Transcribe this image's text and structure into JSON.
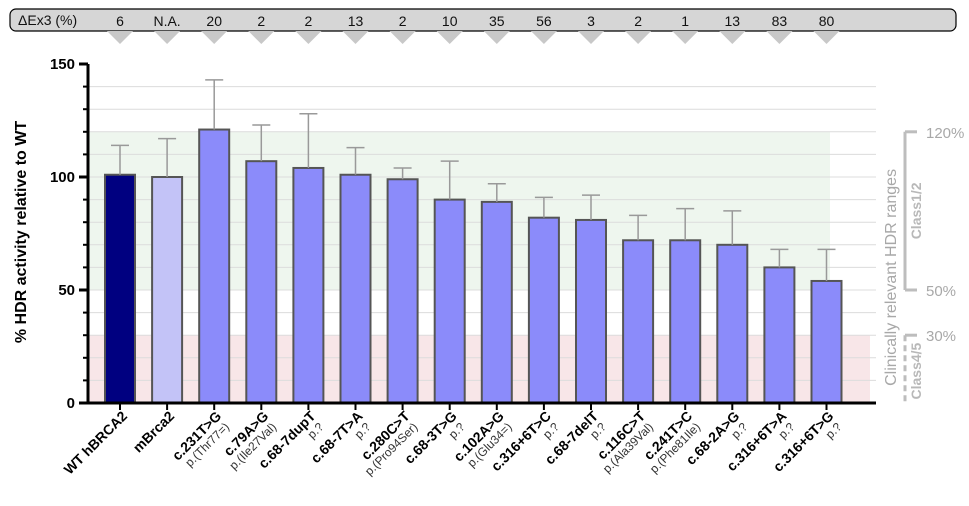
{
  "chart_data": {
    "type": "bar",
    "ylabel": "% HDR activity relative to WT",
    "ylim": [
      0,
      150
    ],
    "yticks": [
      0,
      50,
      100,
      150
    ],
    "grid": true,
    "categories": [
      {
        "main": "WT hBRCA2",
        "sub": ""
      },
      {
        "main": "mBrca2",
        "sub": ""
      },
      {
        "main": "c.231T>G",
        "sub": "p.(Thr77=)"
      },
      {
        "main": "c.79A>G",
        "sub": "p.(Ile27Val)"
      },
      {
        "main": "c.68-7dupT",
        "sub": "p.?"
      },
      {
        "main": "c.68-7T>A",
        "sub": "p.?"
      },
      {
        "main": "c.280C>T",
        "sub": "p.(Pro94Ser)"
      },
      {
        "main": "c.68-3T>G",
        "sub": "p.?"
      },
      {
        "main": "c.102A>G",
        "sub": "p.(Glu34=)"
      },
      {
        "main": "c.316+6T>C",
        "sub": "p.?"
      },
      {
        "main": "c.68-7delT",
        "sub": "p.?"
      },
      {
        "main": "c.116C>T",
        "sub": "p.(Ala39Val)"
      },
      {
        "main": "c.241T>C",
        "sub": "p.(Phe81Ile)"
      },
      {
        "main": "c.68-2A>G",
        "sub": "p.?"
      },
      {
        "main": "c.316+6T>A",
        "sub": "p.?"
      },
      {
        "main": "c.316+6T>G",
        "sub": "p.?"
      }
    ],
    "values": [
      101,
      100,
      121,
      107,
      104,
      101,
      99,
      90,
      89,
      82,
      81,
      72,
      72,
      70,
      60,
      54
    ],
    "errors": [
      13,
      17,
      22,
      16,
      24,
      12,
      5,
      17,
      8,
      9,
      11,
      11,
      14,
      15,
      8,
      14
    ],
    "colors": [
      "#000080",
      "#c3c3f7",
      "#8b8bfa",
      "#8b8bfa",
      "#8b8bfa",
      "#8b8bfa",
      "#8b8bfa",
      "#8b8bfa",
      "#8b8bfa",
      "#8b8bfa",
      "#8b8bfa",
      "#8b8bfa",
      "#8b8bfa",
      "#8b8bfa",
      "#8b8bfa",
      "#8b8bfa"
    ],
    "delta_ex3": {
      "label": "ΔEx3 (%)",
      "values": [
        "6",
        "N.A.",
        "20",
        "2",
        "2",
        "13",
        "2",
        "10",
        "35",
        "56",
        "3",
        "2",
        "1",
        "13",
        "83",
        "80"
      ]
    },
    "bands": {
      "title": "Clinically relevant HDR ranges",
      "class12": {
        "label": "Class1/2",
        "from": 50,
        "to": 120,
        "color": "#eef6ee"
      },
      "class45": {
        "label": "Class4/5",
        "from": 0,
        "to": 30,
        "color": "#f8e6e8"
      },
      "labels": [
        "120%",
        "50%",
        "30%"
      ]
    }
  }
}
